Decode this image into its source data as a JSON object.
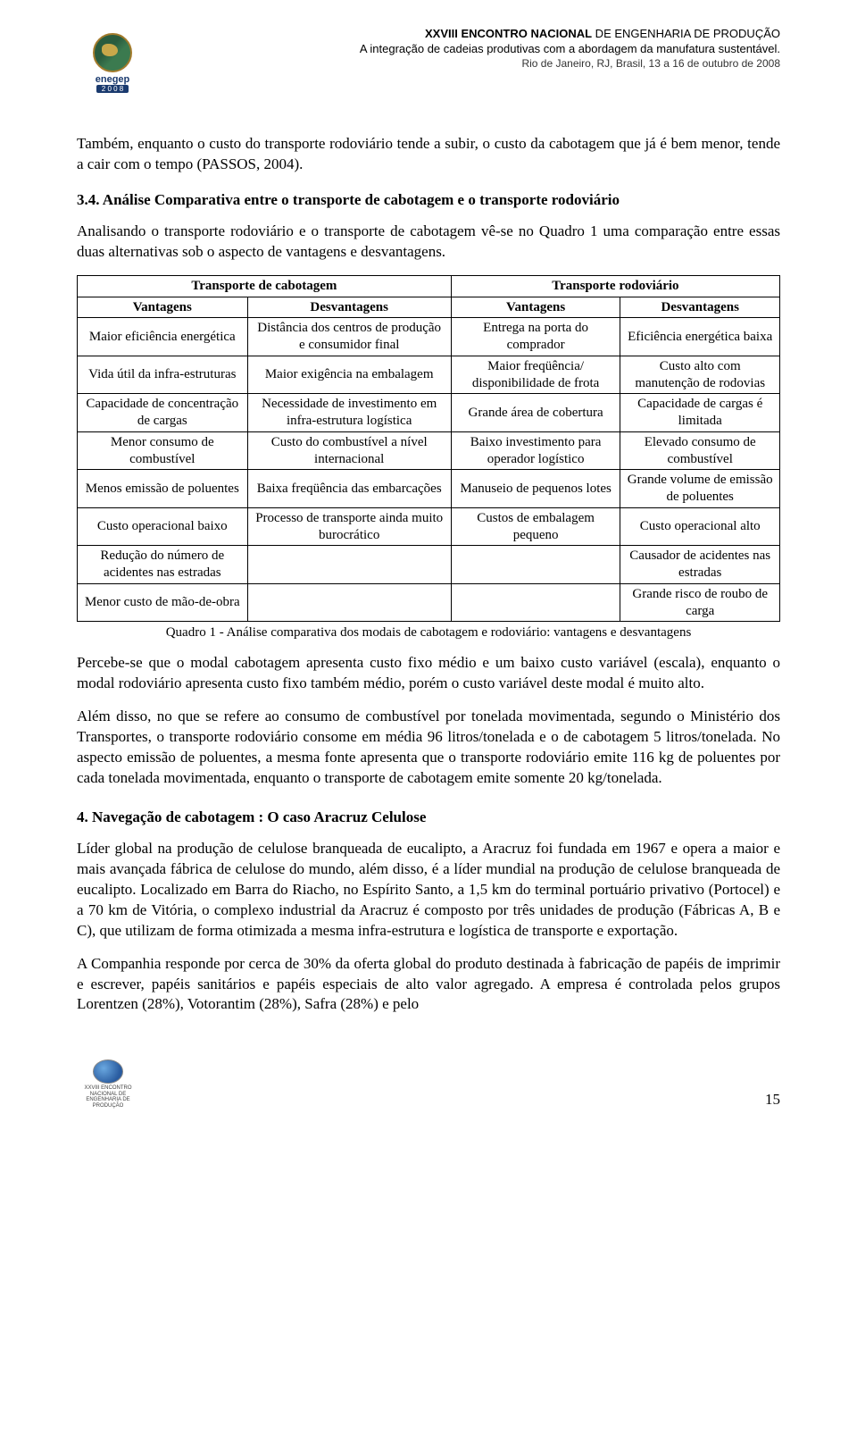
{
  "header": {
    "title_bold": "XXVIII ENCONTRO NACIONAL",
    "title_rest": " DE ENGENHARIA DE PRODUÇÃO",
    "subtitle": "A integração de cadeias produtivas com a abordagem da manufatura sustentável.",
    "location": "Rio de Janeiro, RJ, Brasil, 13 a 16 de outubro de 2008",
    "logo_text": "enegep",
    "logo_year": "2 0 0 8"
  },
  "paragraphs": {
    "p1": "Também, enquanto o custo do transporte rodoviário tende a subir, o custo da cabotagem que já é bem menor, tende a cair com o tempo (PASSOS, 2004).",
    "heading1": "3.4. Análise Comparativa entre o transporte de cabotagem e o transporte rodoviário",
    "p2": "Analisando o transporte rodoviário e o transporte de cabotagem vê-se no Quadro 1 uma comparação entre essas duas alternativas sob o aspecto de vantagens e desvantagens.",
    "caption": "Quadro 1 - Análise comparativa dos modais de cabotagem e rodoviário: vantagens e desvantagens",
    "p3": "Percebe-se que o modal cabotagem apresenta custo fixo médio e um baixo custo variável (escala), enquanto o modal rodoviário apresenta custo fixo também médio, porém o custo variável deste modal é muito alto.",
    "p4": "Além disso, no que se refere ao consumo de combustível por tonelada movimentada, segundo o Ministério dos Transportes, o transporte rodoviário consome em média 96 litros/tonelada e o de cabotagem 5 litros/tonelada. No aspecto emissão de poluentes, a mesma fonte apresenta que o transporte rodoviário emite 116 kg de poluentes por cada tonelada movimentada, enquanto o transporte de cabotagem emite somente 20 kg/tonelada.",
    "heading2": "4. Navegação de cabotagem : O caso Aracruz Celulose",
    "p5": "Líder global na produção de celulose branqueada de eucalipto, a Aracruz foi fundada em 1967 e opera a maior e mais avançada fábrica de celulose do mundo, além disso, é a líder mundial na produção de celulose branqueada de eucalipto. Localizado em Barra do Riacho, no Espírito Santo, a 1,5 km do terminal portuário privativo (Portocel) e a 70 km de Vitória, o complexo industrial da Aracruz é composto por três unidades de produção (Fábricas A, B e C), que utilizam de forma otimizada a mesma infra-estrutura e logística de transporte e exportação.",
    "p6": "A Companhia responde por cerca de 30% da oferta global do produto destinada à fabricação de papéis de imprimir e escrever, papéis sanitários e papéis especiais de alto valor agregado. A empresa é controlada pelos grupos Lorentzen (28%), Votorantim (28%), Safra (28%) e pelo"
  },
  "table": {
    "group_headers": [
      "Transporte de cabotagem",
      "Transporte rodoviário"
    ],
    "sub_headers": [
      "Vantagens",
      "Desvantagens",
      "Vantagens",
      "Desvantagens"
    ],
    "rows": [
      [
        "Maior eficiência energética",
        "Distância dos centros de produção e consumidor final",
        "Entrega na porta do comprador",
        "Eficiência energética baixa"
      ],
      [
        "Vida útil da infra-estruturas",
        "Maior exigência na embalagem",
        "Maior freqüência/ disponibilidade de frota",
        "Custo alto com manutenção de rodovias"
      ],
      [
        "Capacidade de concentração de cargas",
        "Necessidade de investimento em infra-estrutura logística",
        "Grande área de cobertura",
        "Capacidade de cargas é limitada"
      ],
      [
        "Menor consumo de combustível",
        "Custo do combustível a nível internacional",
        "Baixo investimento para operador logístico",
        "Elevado consumo de combustível"
      ],
      [
        "Menos emissão de poluentes",
        "Baixa freqüência das embarcações",
        "Manuseio de pequenos lotes",
        "Grande volume de emissão de poluentes"
      ],
      [
        "Custo operacional baixo",
        "Processo de transporte ainda muito burocrático",
        "Custos de embalagem pequeno",
        "Custo operacional alto"
      ],
      [
        "Redução do número de acidentes nas estradas",
        "",
        "",
        "Causador de acidentes nas estradas"
      ],
      [
        "Menor custo de mão-de-obra",
        "",
        "",
        "Grande risco de roubo de carga"
      ]
    ]
  },
  "footer": {
    "page": "15",
    "footer_logo_text": "XXVIII ENCONTRO NACIONAL DE ENGENHARIA DE PRODUÇÃO"
  },
  "colors": {
    "text": "#000000",
    "background": "#ffffff",
    "border": "#000000"
  }
}
